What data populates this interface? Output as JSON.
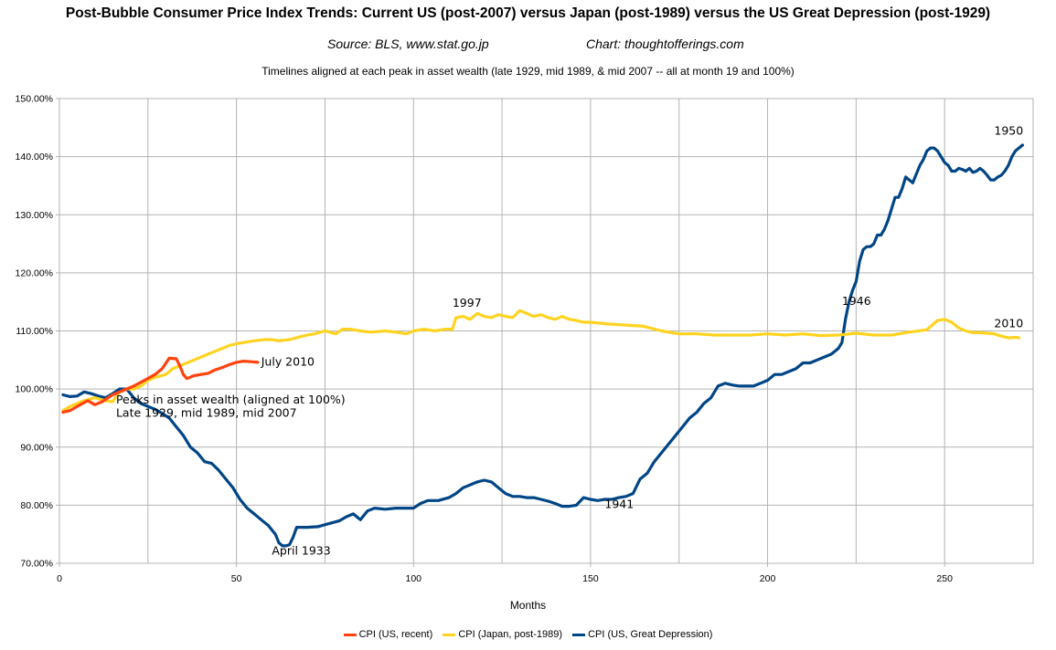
{
  "header": {
    "title": "Post-Bubble Consumer Price Index Trends: Current US (post-2007) versus Japan (post-1989) versus the US Great Depression (post-1929)",
    "source": "Source: BLS, www.stat.go.jp",
    "credit": "Chart: thoughtofferings.com",
    "subtitle": "Timelines aligned at each peak in asset wealth (late 1929, mid 1989, & mid 2007 -- all at month 19 and 100%)"
  },
  "chart_data": {
    "type": "line",
    "xlabel": "Months",
    "ylabel": "",
    "xlim": [
      0,
      275
    ],
    "ylim": [
      70,
      150
    ],
    "x_ticks": [
      0,
      50,
      100,
      150,
      200,
      250
    ],
    "x_tick_labels": [
      "0",
      "50",
      "100",
      "150",
      "200",
      "250"
    ],
    "y_ticks": [
      70,
      80,
      90,
      100,
      110,
      120,
      130,
      140,
      150
    ],
    "y_tick_labels": [
      "70.00%",
      "80.00%",
      "90.00%",
      "100.00%",
      "110.00%",
      "120.00%",
      "130.00%",
      "140.00%",
      "150.00%"
    ],
    "grid": true,
    "legend_position": "bottom",
    "series": [
      {
        "name": "CPI (US, recent)",
        "color": "#ff420e",
        "points": [
          [
            1,
            96
          ],
          [
            3,
            96.3
          ],
          [
            5,
            97
          ],
          [
            8,
            98
          ],
          [
            10,
            97.3
          ],
          [
            12,
            97.8
          ],
          [
            15,
            99
          ],
          [
            19,
            100
          ],
          [
            21,
            100.5
          ],
          [
            24,
            101.5
          ],
          [
            27,
            102.5
          ],
          [
            29,
            103.5
          ],
          [
            31,
            105.3
          ],
          [
            33,
            105.2
          ],
          [
            34,
            104
          ],
          [
            35,
            102.5
          ],
          [
            36,
            101.8
          ],
          [
            38,
            102.3
          ],
          [
            40,
            102.5
          ],
          [
            42,
            102.7
          ],
          [
            44,
            103.3
          ],
          [
            46,
            103.7
          ],
          [
            48,
            104.2
          ],
          [
            50,
            104.6
          ],
          [
            52,
            104.8
          ],
          [
            54,
            104.7
          ],
          [
            56,
            104.6
          ]
        ]
      },
      {
        "name": "CPI (Japan, post-1989)",
        "color": "#ffd320",
        "points": [
          [
            1,
            96.3
          ],
          [
            3,
            97
          ],
          [
            5,
            97.5
          ],
          [
            7,
            98
          ],
          [
            10,
            98.5
          ],
          [
            13,
            98
          ],
          [
            15,
            97.8
          ],
          [
            17,
            99.5
          ],
          [
            19,
            100
          ],
          [
            21,
            100
          ],
          [
            23,
            100.5
          ],
          [
            25,
            101.5
          ],
          [
            27,
            102
          ],
          [
            30,
            102.5
          ],
          [
            32,
            103.5
          ],
          [
            34,
            104
          ],
          [
            36,
            104.5
          ],
          [
            38,
            105
          ],
          [
            40,
            105.5
          ],
          [
            42,
            106
          ],
          [
            44,
            106.5
          ],
          [
            46,
            107
          ],
          [
            48,
            107.5
          ],
          [
            50,
            107.8
          ],
          [
            52,
            108
          ],
          [
            55,
            108.3
          ],
          [
            58,
            108.5
          ],
          [
            60,
            108.5
          ],
          [
            62,
            108.3
          ],
          [
            65,
            108.5
          ],
          [
            68,
            109
          ],
          [
            70,
            109.3
          ],
          [
            72,
            109.5
          ],
          [
            75,
            110
          ],
          [
            78,
            109.5
          ],
          [
            80,
            110.3
          ],
          [
            82,
            110.3
          ],
          [
            85,
            110
          ],
          [
            88,
            109.8
          ],
          [
            92,
            110
          ],
          [
            95,
            109.8
          ],
          [
            98,
            109.5
          ],
          [
            100,
            110
          ],
          [
            103,
            110.3
          ],
          [
            106,
            110
          ],
          [
            109,
            110.3
          ],
          [
            111,
            110.3
          ],
          [
            112,
            112.3
          ],
          [
            114,
            112.5
          ],
          [
            116,
            112
          ],
          [
            118,
            113
          ],
          [
            120,
            112.5
          ],
          [
            122,
            112.3
          ],
          [
            124,
            112.8
          ],
          [
            126,
            112.5
          ],
          [
            128,
            112.3
          ],
          [
            130,
            113.5
          ],
          [
            132,
            113
          ],
          [
            134,
            112.5
          ],
          [
            136,
            112.8
          ],
          [
            138,
            112.3
          ],
          [
            140,
            112
          ],
          [
            142,
            112.5
          ],
          [
            144,
            112
          ],
          [
            146,
            111.8
          ],
          [
            148,
            111.5
          ],
          [
            150,
            111.5
          ],
          [
            155,
            111.2
          ],
          [
            160,
            111
          ],
          [
            165,
            110.8
          ],
          [
            170,
            110
          ],
          [
            175,
            109.5
          ],
          [
            180,
            109.5
          ],
          [
            185,
            109.3
          ],
          [
            190,
            109.3
          ],
          [
            195,
            109.3
          ],
          [
            200,
            109.5
          ],
          [
            205,
            109.3
          ],
          [
            210,
            109.5
          ],
          [
            215,
            109.2
          ],
          [
            220,
            109.3
          ],
          [
            225,
            109.6
          ],
          [
            230,
            109.3
          ],
          [
            235,
            109.3
          ],
          [
            240,
            109.8
          ],
          [
            245,
            110.2
          ],
          [
            248,
            111.8
          ],
          [
            250,
            112
          ],
          [
            252,
            111.5
          ],
          [
            254,
            110.5
          ],
          [
            256,
            110
          ],
          [
            258,
            109.7
          ],
          [
            260,
            109.7
          ],
          [
            262,
            109.6
          ],
          [
            264,
            109.5
          ],
          [
            266,
            109.1
          ],
          [
            268,
            108.8
          ],
          [
            270,
            108.9
          ],
          [
            271,
            108.8
          ]
        ]
      },
      {
        "name": "CPI (US, Great Depression)",
        "color": "#004586",
        "points": [
          [
            1,
            99
          ],
          [
            3,
            98.7
          ],
          [
            5,
            98.8
          ],
          [
            7,
            99.5
          ],
          [
            9,
            99.2
          ],
          [
            11,
            98.8
          ],
          [
            13,
            98.5
          ],
          [
            15,
            99.2
          ],
          [
            17,
            100
          ],
          [
            19,
            100
          ],
          [
            21,
            98.5
          ],
          [
            23,
            97.5
          ],
          [
            25,
            97
          ],
          [
            27,
            96.5
          ],
          [
            29,
            95.8
          ],
          [
            31,
            95
          ],
          [
            33,
            93.5
          ],
          [
            35,
            92
          ],
          [
            37,
            90
          ],
          [
            39,
            89
          ],
          [
            41,
            87.5
          ],
          [
            43,
            87.2
          ],
          [
            45,
            86
          ],
          [
            47,
            84.5
          ],
          [
            49,
            83
          ],
          [
            51,
            81
          ],
          [
            53,
            79.5
          ],
          [
            55,
            78.5
          ],
          [
            57,
            77.5
          ],
          [
            59,
            76.5
          ],
          [
            61,
            75
          ],
          [
            62,
            73.5
          ],
          [
            63,
            73
          ],
          [
            64,
            73
          ],
          [
            65,
            73.2
          ],
          [
            66,
            74.5
          ],
          [
            67,
            76.2
          ],
          [
            70,
            76.2
          ],
          [
            73,
            76.3
          ],
          [
            76,
            76.8
          ],
          [
            79,
            77.3
          ],
          [
            81,
            78
          ],
          [
            83,
            78.5
          ],
          [
            85,
            77.5
          ],
          [
            87,
            79
          ],
          [
            89,
            79.5
          ],
          [
            92,
            79.3
          ],
          [
            95,
            79.5
          ],
          [
            98,
            79.5
          ],
          [
            100,
            79.5
          ],
          [
            102,
            80.3
          ],
          [
            104,
            80.8
          ],
          [
            107,
            80.8
          ],
          [
            110,
            81.3
          ],
          [
            112,
            82
          ],
          [
            114,
            83
          ],
          [
            116,
            83.5
          ],
          [
            118,
            84
          ],
          [
            120,
            84.3
          ],
          [
            122,
            84
          ],
          [
            124,
            83
          ],
          [
            126,
            82
          ],
          [
            128,
            81.5
          ],
          [
            130,
            81.5
          ],
          [
            132,
            81.3
          ],
          [
            134,
            81.3
          ],
          [
            136,
            81
          ],
          [
            138,
            80.7
          ],
          [
            140,
            80.3
          ],
          [
            142,
            79.8
          ],
          [
            144,
            79.8
          ],
          [
            146,
            80
          ],
          [
            148,
            81.3
          ],
          [
            150,
            81
          ],
          [
            152,
            80.8
          ],
          [
            154,
            81
          ],
          [
            156,
            81
          ],
          [
            158,
            81.3
          ],
          [
            160,
            81.5
          ],
          [
            162,
            82
          ],
          [
            164,
            84.5
          ],
          [
            166,
            85.5
          ],
          [
            168,
            87.5
          ],
          [
            170,
            89
          ],
          [
            172,
            90.5
          ],
          [
            174,
            92
          ],
          [
            176,
            93.5
          ],
          [
            178,
            95
          ],
          [
            180,
            96
          ],
          [
            182,
            97.5
          ],
          [
            184,
            98.5
          ],
          [
            186,
            100.5
          ],
          [
            188,
            101
          ],
          [
            190,
            100.7
          ],
          [
            192,
            100.5
          ],
          [
            194,
            100.5
          ],
          [
            196,
            100.5
          ],
          [
            198,
            101
          ],
          [
            200,
            101.5
          ],
          [
            202,
            102.5
          ],
          [
            204,
            102.5
          ],
          [
            206,
            103
          ],
          [
            208,
            103.5
          ],
          [
            210,
            104.5
          ],
          [
            212,
            104.5
          ],
          [
            214,
            105
          ],
          [
            216,
            105.5
          ],
          [
            218,
            106
          ],
          [
            220,
            107
          ],
          [
            221,
            108
          ],
          [
            222,
            112
          ],
          [
            223,
            115
          ],
          [
            224,
            117
          ],
          [
            225,
            118.5
          ],
          [
            226,
            122
          ],
          [
            227,
            124
          ],
          [
            228,
            124.5
          ],
          [
            229,
            124.5
          ],
          [
            230,
            125
          ],
          [
            231,
            126.5
          ],
          [
            232,
            126.5
          ],
          [
            233,
            127.5
          ],
          [
            234,
            129
          ],
          [
            235,
            131
          ],
          [
            236,
            133
          ],
          [
            237,
            133
          ],
          [
            238,
            134.5
          ],
          [
            239,
            136.5
          ],
          [
            240,
            136
          ],
          [
            241,
            135.5
          ],
          [
            242,
            137
          ],
          [
            243,
            138.5
          ],
          [
            244,
            139.5
          ],
          [
            245,
            141
          ],
          [
            246,
            141.5
          ],
          [
            247,
            141.5
          ],
          [
            248,
            141
          ],
          [
            249,
            140
          ],
          [
            250,
            139
          ],
          [
            251,
            138.5
          ],
          [
            252,
            137.5
          ],
          [
            253,
            137.5
          ],
          [
            254,
            138
          ],
          [
            255,
            137.8
          ],
          [
            256,
            137.5
          ],
          [
            257,
            138
          ],
          [
            258,
            137.3
          ],
          [
            259,
            137.5
          ],
          [
            260,
            138
          ],
          [
            261,
            137.5
          ],
          [
            262,
            136.8
          ],
          [
            263,
            136
          ],
          [
            264,
            136
          ],
          [
            265,
            136.5
          ],
          [
            266,
            136.8
          ],
          [
            267,
            137.5
          ],
          [
            268,
            138.5
          ],
          [
            269,
            140
          ],
          [
            270,
            141
          ],
          [
            271,
            141.5
          ],
          [
            272,
            142
          ]
        ]
      }
    ],
    "annotations": [
      {
        "text": "July 2010",
        "x": 57,
        "y": 104
      },
      {
        "text": "Peaks in asset wealth (aligned at 100%)",
        "x": 16,
        "y": 97.5
      },
      {
        "text": "Late 1929, mid 1989, mid 2007",
        "x": 16,
        "y": 95.2
      },
      {
        "text": "April 1933",
        "x": 60,
        "y": 71.5
      },
      {
        "text": "1997",
        "x": 111,
        "y": 114.2
      },
      {
        "text": "1941",
        "x": 154,
        "y": 79.5
      },
      {
        "text": "1946",
        "x": 221,
        "y": 114.5
      },
      {
        "text": "1950",
        "x": 264,
        "y": 143.8
      },
      {
        "text": "2010",
        "x": 264,
        "y": 110.6
      }
    ]
  }
}
